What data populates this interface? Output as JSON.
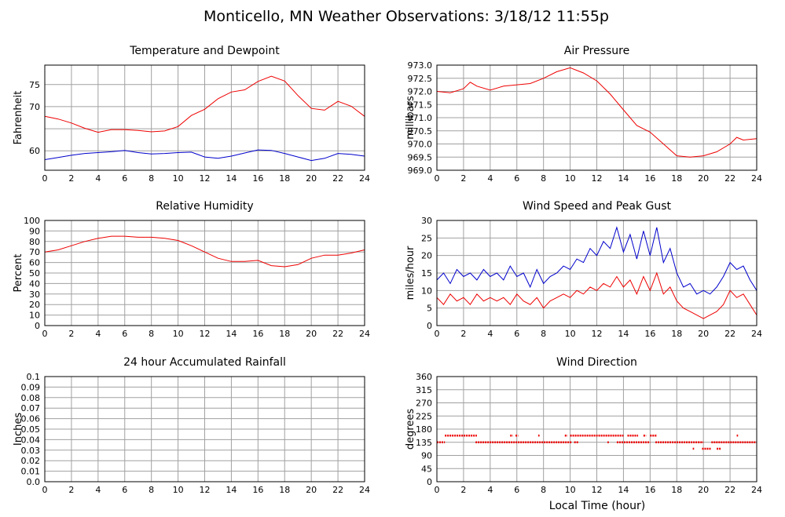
{
  "page_title": "Monticello, MN Weather Observations: 3/18/12 11:55p",
  "x_axis_label": "Local Time (hour)",
  "colors": {
    "red": "#ee0000",
    "blue": "#0000cc",
    "grid": "#a0a0a0",
    "axis": "#000000"
  },
  "chart_data": [
    {
      "id": "temp",
      "type": "line",
      "title": "Temperature and Dewpoint",
      "ylabel": "Fahrenheit",
      "xlim": [
        0,
        24
      ],
      "ylim": [
        55.6,
        79.4
      ],
      "xticks": [
        0,
        2,
        4,
        6,
        8,
        10,
        12,
        14,
        16,
        18,
        20,
        22,
        24
      ],
      "yticks": [
        60,
        65,
        70,
        75
      ],
      "ytick_labels": [
        "60",
        "",
        "70",
        "75"
      ],
      "grid": true,
      "series": [
        {
          "color": "#ee0000",
          "x": [
            0,
            1,
            2,
            3,
            4,
            5,
            6,
            7,
            8,
            9,
            10,
            11,
            12,
            13,
            14,
            15,
            16,
            17,
            18,
            19,
            20,
            21,
            22,
            23,
            24
          ],
          "y": [
            67.8,
            67.2,
            66.3,
            65.1,
            64.2,
            64.8,
            64.8,
            64.6,
            64.3,
            64.5,
            65.5,
            68.0,
            69.4,
            71.8,
            73.3,
            73.8,
            75.7,
            76.9,
            75.8,
            72.5,
            69.6,
            69.2,
            71.2,
            70.1,
            67.8
          ]
        },
        {
          "color": "#0000cc",
          "x": [
            0,
            1,
            2,
            3,
            4,
            5,
            6,
            7,
            8,
            9,
            10,
            11,
            12,
            13,
            14,
            15,
            16,
            17,
            18,
            19,
            20,
            21,
            22,
            23,
            24
          ],
          "y": [
            58.0,
            58.5,
            59.0,
            59.4,
            59.6,
            59.8,
            60.1,
            59.6,
            59.3,
            59.4,
            59.6,
            59.7,
            58.6,
            58.3,
            58.8,
            59.5,
            60.2,
            60.1,
            59.4,
            58.6,
            57.8,
            58.3,
            59.4,
            59.2,
            58.8
          ]
        }
      ]
    },
    {
      "id": "pressure",
      "type": "line",
      "title": "Air Pressure",
      "ylabel": "millibars",
      "xlim": [
        0,
        24
      ],
      "ylim": [
        969.0,
        973.0
      ],
      "xticks": [
        0,
        2,
        4,
        6,
        8,
        10,
        12,
        14,
        16,
        18,
        20,
        22,
        24
      ],
      "yticks": [
        969.0,
        969.5,
        970.0,
        970.5,
        971.0,
        971.5,
        972.0,
        972.5,
        973.0
      ],
      "ytick_labels": [
        "969.0",
        "969.5",
        "970.0",
        "970.5",
        "971.0",
        "971.5",
        "972.0",
        "972.5",
        "973.0"
      ],
      "grid": true,
      "series": [
        {
          "color": "#ee0000",
          "x": [
            0,
            1,
            2,
            2.5,
            3,
            4,
            5,
            6,
            7,
            8,
            9,
            10,
            11,
            12,
            13,
            14,
            15,
            16,
            17,
            18,
            19,
            20,
            21,
            22,
            22.5,
            23,
            24
          ],
          "y": [
            972.0,
            971.95,
            972.1,
            972.35,
            972.2,
            972.05,
            972.2,
            972.25,
            972.3,
            972.5,
            972.75,
            972.9,
            972.7,
            972.4,
            971.9,
            971.3,
            970.7,
            970.45,
            970.0,
            969.55,
            969.5,
            969.55,
            969.7,
            970.0,
            970.25,
            970.15,
            970.2
          ]
        }
      ]
    },
    {
      "id": "humidity",
      "type": "line",
      "title": "Relative Humidity",
      "ylabel": "Percent",
      "xlim": [
        0,
        24
      ],
      "ylim": [
        0,
        100
      ],
      "xticks": [
        0,
        2,
        4,
        6,
        8,
        10,
        12,
        14,
        16,
        18,
        20,
        22,
        24
      ],
      "yticks": [
        0,
        10,
        20,
        30,
        40,
        50,
        60,
        70,
        80,
        90,
        100
      ],
      "ytick_labels": [
        "0",
        "10",
        "20",
        "30",
        "40",
        "50",
        "60",
        "70",
        "80",
        "90",
        "100"
      ],
      "grid": true,
      "series": [
        {
          "color": "#ee0000",
          "x": [
            0,
            1,
            2,
            3,
            4,
            5,
            6,
            7,
            8,
            9,
            10,
            11,
            12,
            13,
            14,
            15,
            16,
            17,
            18,
            19,
            20,
            21,
            22,
            23,
            24
          ],
          "y": [
            70,
            72,
            76,
            80,
            83,
            85,
            85,
            84,
            84,
            83,
            81,
            76,
            70,
            64,
            61,
            61,
            62,
            57,
            56,
            58,
            64,
            67,
            67,
            69,
            72
          ]
        }
      ]
    },
    {
      "id": "wind",
      "type": "line",
      "title": "Wind Speed and Peak Gust",
      "ylabel": "miles/hour",
      "xlim": [
        0,
        24
      ],
      "ylim": [
        0,
        30
      ],
      "xticks": [
        0,
        2,
        4,
        6,
        8,
        10,
        12,
        14,
        16,
        18,
        20,
        22,
        24
      ],
      "yticks": [
        0,
        5,
        10,
        15,
        20,
        25,
        30
      ],
      "ytick_labels": [
        "0",
        "5",
        "10",
        "15",
        "20",
        "25",
        "30"
      ],
      "grid": true,
      "series": [
        {
          "color": "#0000cc",
          "x": [
            0,
            0.5,
            1,
            1.5,
            2,
            2.5,
            3,
            3.5,
            4,
            4.5,
            5,
            5.5,
            6,
            6.5,
            7,
            7.5,
            8,
            8.5,
            9,
            9.5,
            10,
            10.5,
            11,
            11.5,
            12,
            12.5,
            13,
            13.5,
            14,
            14.5,
            15,
            15.5,
            16,
            16.5,
            17,
            17.5,
            18,
            18.5,
            19,
            19.5,
            20,
            20.5,
            21,
            21.5,
            22,
            22.5,
            23,
            23.5,
            24
          ],
          "y": [
            13,
            15,
            12,
            16,
            14,
            15,
            13,
            16,
            14,
            15,
            13,
            17,
            14,
            15,
            11,
            16,
            12,
            14,
            15,
            17,
            16,
            19,
            18,
            22,
            20,
            24,
            22,
            28,
            21,
            26,
            19,
            27,
            20,
            28,
            18,
            22,
            15,
            11,
            12,
            9,
            10,
            9,
            11,
            14,
            18,
            16,
            17,
            13,
            10
          ]
        },
        {
          "color": "#ee0000",
          "x": [
            0,
            0.5,
            1,
            1.5,
            2,
            2.5,
            3,
            3.5,
            4,
            4.5,
            5,
            5.5,
            6,
            6.5,
            7,
            7.5,
            8,
            8.5,
            9,
            9.5,
            10,
            10.5,
            11,
            11.5,
            12,
            12.5,
            13,
            13.5,
            14,
            14.5,
            15,
            15.5,
            16,
            16.5,
            17,
            17.5,
            18,
            18.5,
            19,
            19.5,
            20,
            20.5,
            21,
            21.5,
            22,
            22.5,
            23,
            23.5,
            24
          ],
          "y": [
            8,
            6,
            9,
            7,
            8,
            6,
            9,
            7,
            8,
            7,
            8,
            6,
            9,
            7,
            6,
            8,
            5,
            7,
            8,
            9,
            8,
            10,
            9,
            11,
            10,
            12,
            11,
            14,
            11,
            13,
            9,
            14,
            10,
            15,
            9,
            11,
            7,
            5,
            4,
            3,
            2,
            3,
            4,
            6,
            10,
            8,
            9,
            6,
            3
          ]
        }
      ]
    },
    {
      "id": "rain",
      "type": "line",
      "title": "24 hour Accumulated Rainfall",
      "ylabel": "Inches",
      "xlim": [
        0,
        24
      ],
      "ylim": [
        0,
        0.1
      ],
      "xticks": [
        0,
        2,
        4,
        6,
        8,
        10,
        12,
        14,
        16,
        18,
        20,
        22,
        24
      ],
      "yticks": [
        0,
        0.01,
        0.02,
        0.03,
        0.04,
        0.05,
        0.06,
        0.07,
        0.08,
        0.09,
        0.1
      ],
      "ytick_labels": [
        "0.0",
        "0.01",
        "0.02",
        "0.03",
        "0.04",
        "0.05",
        "0.06",
        "0.07",
        "0.08",
        "0.09",
        "0.1"
      ],
      "grid": true,
      "series": [
        {
          "color": "#ee0000",
          "x": [
            0,
            24
          ],
          "y": [
            0,
            0
          ]
        }
      ]
    },
    {
      "id": "direction",
      "type": "scatter",
      "title": "Wind Direction",
      "ylabel": "degrees",
      "xlim": [
        0,
        24
      ],
      "ylim": [
        0,
        360
      ],
      "xticks": [
        0,
        2,
        4,
        6,
        8,
        10,
        12,
        14,
        16,
        18,
        20,
        22,
        24
      ],
      "yticks": [
        0,
        45,
        90,
        135,
        180,
        225,
        270,
        315,
        360
      ],
      "ytick_labels": [
        "0",
        "45",
        "90",
        "135",
        "180",
        "225",
        "270",
        "315",
        "360"
      ],
      "grid": true,
      "segments": [
        {
          "x0": 0.0,
          "x1": 0.6,
          "y": 135
        },
        {
          "x0": 0.6,
          "x1": 3.0,
          "y": 158
        },
        {
          "x0": 2.9,
          "x1": 10.1,
          "y": 135
        },
        {
          "x0": 5.5,
          "x1": 5.7,
          "y": 158
        },
        {
          "x0": 5.9,
          "x1": 6.1,
          "y": 158
        },
        {
          "x0": 7.6,
          "x1": 7.7,
          "y": 158
        },
        {
          "x0": 9.6,
          "x1": 9.8,
          "y": 158
        },
        {
          "x0": 10.0,
          "x1": 14.0,
          "y": 158
        },
        {
          "x0": 10.3,
          "x1": 10.6,
          "y": 135
        },
        {
          "x0": 12.8,
          "x1": 12.9,
          "y": 135
        },
        {
          "x0": 13.5,
          "x1": 16.0,
          "y": 135
        },
        {
          "x0": 14.3,
          "x1": 15.1,
          "y": 158
        },
        {
          "x0": 15.5,
          "x1": 15.7,
          "y": 158
        },
        {
          "x0": 16.0,
          "x1": 16.5,
          "y": 158
        },
        {
          "x0": 16.4,
          "x1": 19.6,
          "y": 135
        },
        {
          "x0": 19.2,
          "x1": 19.3,
          "y": 113
        },
        {
          "x0": 19.6,
          "x1": 20.0,
          "y": 135
        },
        {
          "x0": 19.9,
          "x1": 20.6,
          "y": 113
        },
        {
          "x0": 20.6,
          "x1": 24.0,
          "y": 135
        },
        {
          "x0": 21.0,
          "x1": 21.3,
          "y": 113
        },
        {
          "x0": 22.5,
          "x1": 22.6,
          "y": 158
        }
      ]
    }
  ]
}
